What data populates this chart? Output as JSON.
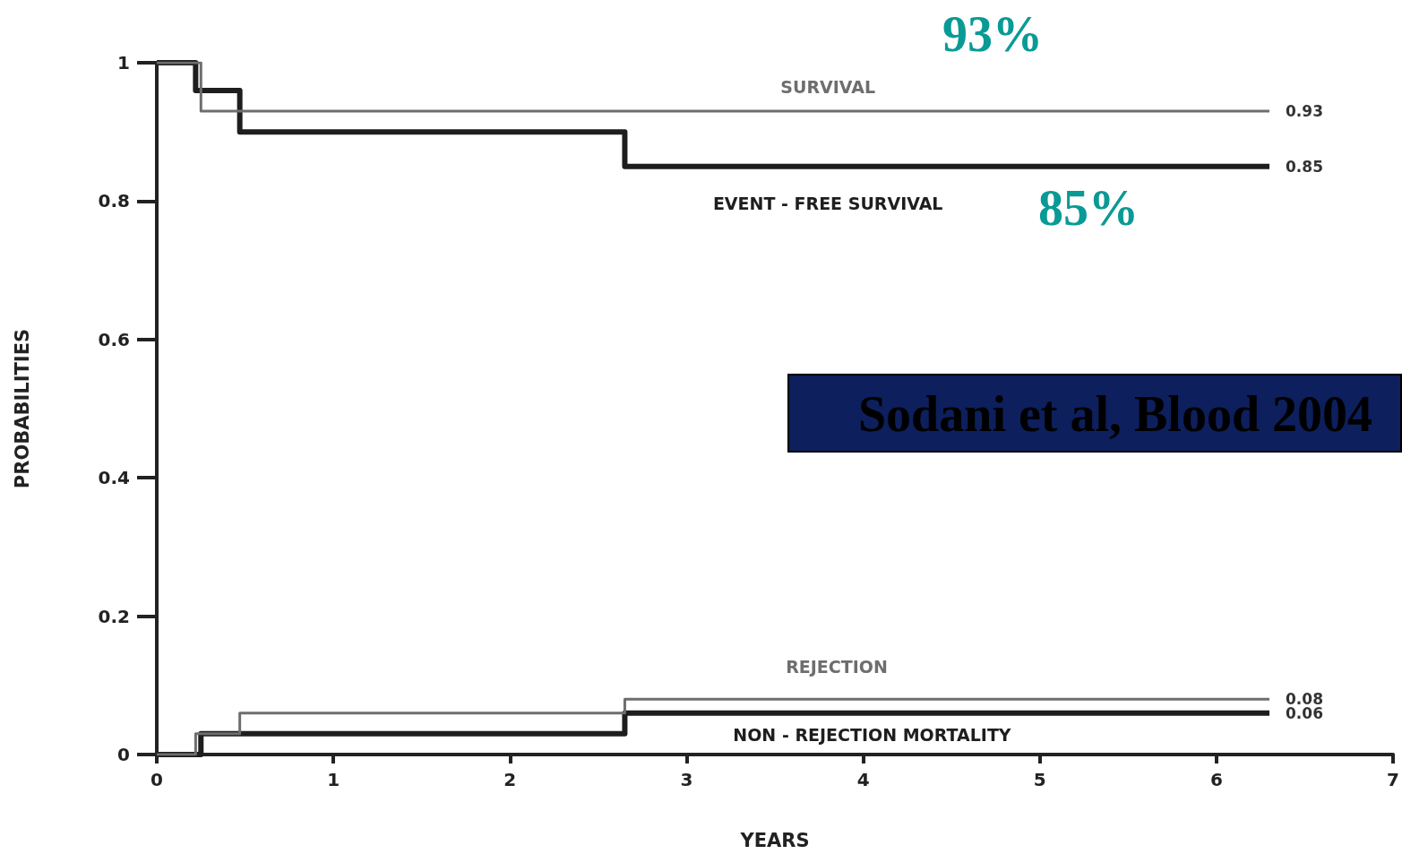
{
  "chart_data": {
    "type": "step",
    "xlabel": "YEARS",
    "ylabel": "PROBABILITIES",
    "xlim": [
      0,
      7
    ],
    "xticks": [
      0,
      1,
      2,
      3,
      4,
      5,
      6,
      7
    ],
    "ylim": [
      0,
      1
    ],
    "yticks": [
      0,
      0.2,
      0.4,
      0.6,
      0.8,
      1
    ],
    "grid": false,
    "legend": false,
    "marker": "none",
    "line_style": "solid",
    "series": [
      {
        "name": "SURVIVAL",
        "color": "#6e6e6e",
        "x": [
          0,
          0.25,
          6.3
        ],
        "values": [
          1,
          0.93,
          0.93
        ],
        "value_labels": [
          null,
          null,
          "0.93"
        ]
      },
      {
        "name": "EVENT - FREE SURVIVAL",
        "color": "#1e1e1e",
        "x": [
          0,
          0.22,
          0.47,
          2.65,
          6.3
        ],
        "values": [
          1,
          0.96,
          0.9,
          0.85,
          0.85
        ],
        "value_labels": [
          null,
          null,
          null,
          null,
          "0.85"
        ]
      },
      {
        "name": "REJECTION",
        "color": "#6e6e6e",
        "x": [
          0,
          0.22,
          0.47,
          2.65,
          6.3
        ],
        "values": [
          0,
          0.03,
          0.06,
          0.08,
          0.08
        ],
        "value_labels": [
          null,
          null,
          null,
          null,
          "0.08"
        ]
      },
      {
        "name": "NON - REJECTION MORTALITY",
        "color": "#1e1e1e",
        "x": [
          0,
          0.25,
          2.65,
          6.3
        ],
        "values": [
          0,
          0.03,
          0.06,
          0.06
        ],
        "value_labels": [
          null,
          null,
          null,
          "0.06"
        ]
      }
    ],
    "annotations": [
      "93%",
      "85%",
      "Sodani et al, Blood 2004"
    ]
  }
}
